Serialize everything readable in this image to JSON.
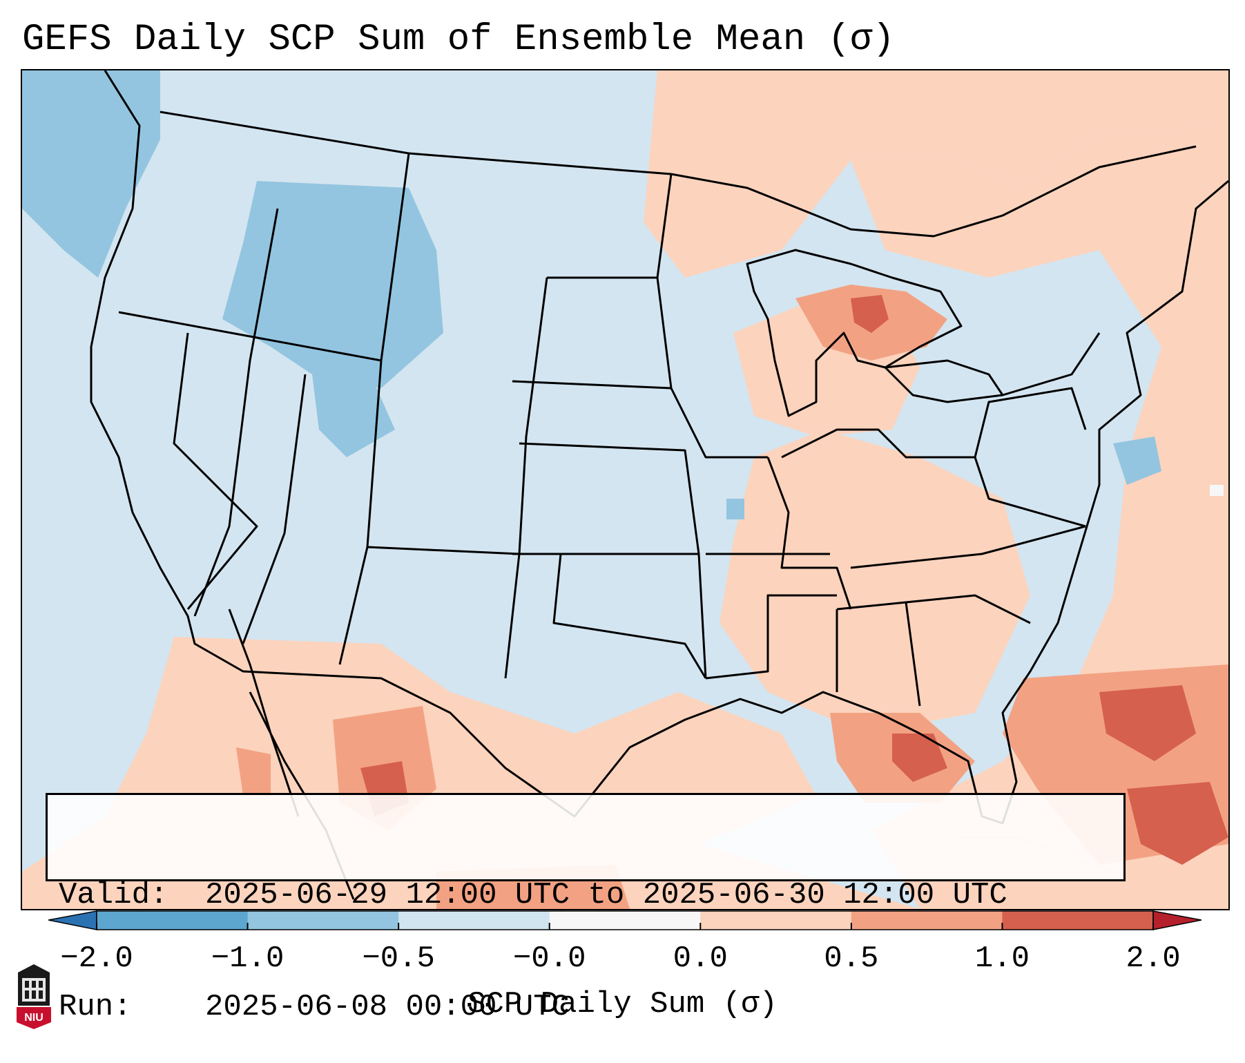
{
  "header": {
    "title": "GEFS Daily SCP Sum of Ensemble Mean (σ)"
  },
  "info_box": {
    "valid_key": "Valid:",
    "valid_value": "2025-06-29 12:00 UTC to 2025-06-30 12:00 UTC",
    "run_key": "Run:",
    "run_value": "2025-06-08 00:00 UTC"
  },
  "colorbar": {
    "label": "SCP Daily Sum (σ)",
    "ticks": [
      "−2.0",
      "−1.0",
      "−0.5",
      "−0.0",
      "0.0",
      "0.5",
      "1.0",
      "2.0"
    ],
    "bin_colors": [
      "#2b72b3",
      "#5da6cf",
      "#93c5e0",
      "#d1e5f0",
      "#f7f7f7",
      "#fcd3bd",
      "#f2a283",
      "#d5604d",
      "#b4202c"
    ]
  },
  "logo": {
    "text": "NIU",
    "colors": {
      "red": "#c8102e",
      "black": "#1a1a1a"
    }
  },
  "map": {
    "projection": "lambert-conformal",
    "region": "CONUS",
    "background_color": "#d3e5f0",
    "field": "SCP daily sum (standardized anomaly, σ)"
  }
}
